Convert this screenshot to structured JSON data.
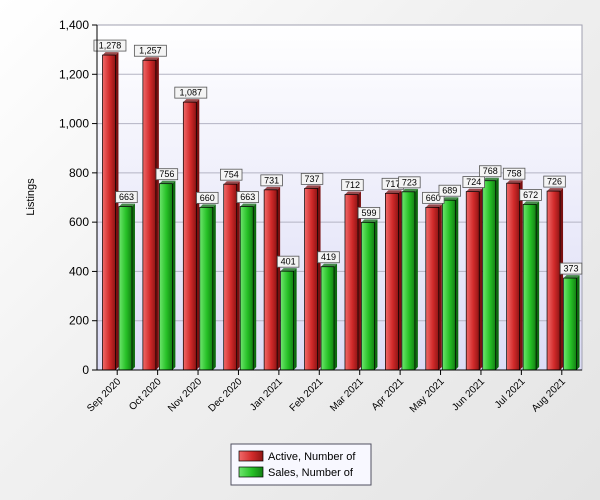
{
  "chart_data": {
    "type": "bar",
    "title": "",
    "xlabel": "",
    "ylabel": "Listings",
    "ylim": [
      0,
      1400
    ],
    "yticks": [
      0,
      200,
      400,
      600,
      800,
      1000,
      1200,
      1400
    ],
    "ytick_labels": [
      "0",
      "200",
      "400",
      "600",
      "800",
      "1,000",
      "1,200",
      "1,400"
    ],
    "grid": true,
    "legend_position": "bottom-center",
    "categories": [
      "Sep 2020",
      "Oct 2020",
      "Nov 2020",
      "Dec 2020",
      "Jan 2021",
      "Feb 2021",
      "Mar 2021",
      "Apr 2021",
      "May 2021",
      "Jun 2021",
      "Jul 2021",
      "Aug 2021"
    ],
    "series": [
      {
        "name": "Active, Number of",
        "color": "#d12a2a",
        "values": [
          1278,
          1257,
          1087,
          754,
          731,
          737,
          712,
          717,
          660,
          724,
          758,
          726
        ],
        "labels": [
          "1,278",
          "1,257",
          "1,087",
          "754",
          "731",
          "737",
          "712",
          "717",
          "660",
          "724",
          "758",
          "726"
        ]
      },
      {
        "name": "Sales, Number of",
        "color": "#26c026",
        "values": [
          663,
          756,
          660,
          663,
          401,
          419,
          599,
          723,
          689,
          768,
          672,
          373
        ],
        "labels": [
          "663",
          "756",
          "660",
          "663",
          "401",
          "419",
          "599",
          "723",
          "689",
          "768",
          "672",
          "373"
        ]
      }
    ]
  }
}
